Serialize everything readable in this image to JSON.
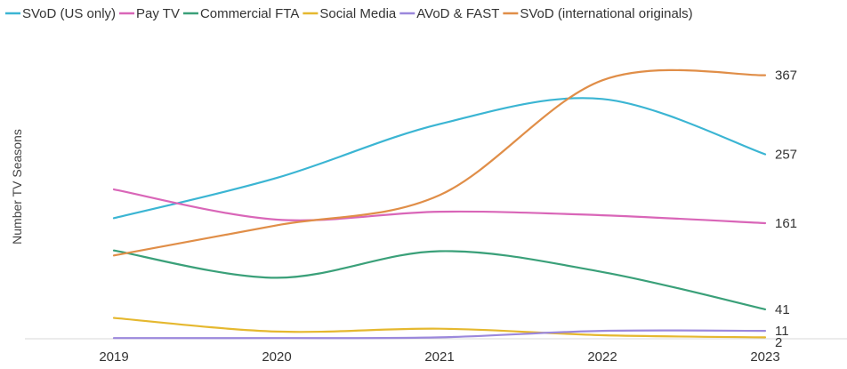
{
  "chart_data": {
    "type": "line",
    "title": "",
    "xlabel": "",
    "ylabel": "Number TV Seasons",
    "x": [
      "2019",
      "2020",
      "2021",
      "2022",
      "2023"
    ],
    "ylim": [
      0,
      400
    ],
    "grid": false,
    "legend_position": "top-left",
    "series": [
      {
        "name": "SVoD (US only)",
        "color": "#3bb5d3",
        "values": [
          168,
          224,
          299,
          334,
          257
        ],
        "end_label": "257"
      },
      {
        "name": "Pay TV",
        "color": "#d966b8",
        "values": [
          208,
          166,
          177,
          172,
          161
        ],
        "end_label": "161"
      },
      {
        "name": "Commercial FTA",
        "color": "#3aa079",
        "values": [
          123,
          85,
          122,
          93,
          41
        ],
        "end_label": "41"
      },
      {
        "name": "Social Media",
        "color": "#e5b82f",
        "values": [
          29,
          10,
          14,
          5,
          2
        ],
        "end_label": "2"
      },
      {
        "name": "AVoD & FAST",
        "color": "#9b88dc",
        "values": [
          1,
          1,
          2,
          11,
          11
        ],
        "end_label": "11"
      },
      {
        "name": "SVoD (international originals)",
        "color": "#e08e48",
        "values": [
          116,
          158,
          200,
          360,
          367
        ],
        "end_label": "367"
      }
    ]
  }
}
